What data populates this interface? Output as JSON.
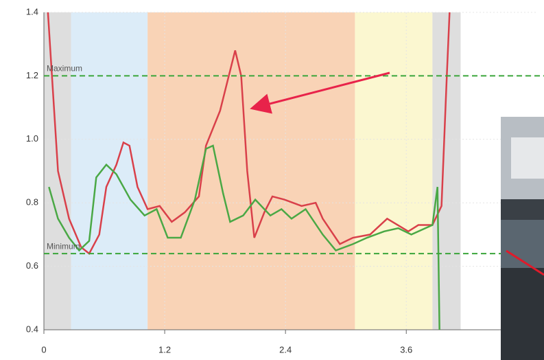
{
  "chart_data": {
    "type": "line",
    "xlim": [
      0,
      4.9
    ],
    "ylim": [
      0.4,
      1.4
    ],
    "xticks": [
      0,
      1.2,
      2.4,
      3.6
    ],
    "yticks": [
      0.4,
      0.6,
      0.8,
      {
        "value": 1,
        "label": "1.0"
      },
      1.2,
      1.4
    ],
    "grid": true,
    "bands": [
      {
        "start": 0,
        "end": 0.27,
        "color": "#dedede"
      },
      {
        "start": 0.27,
        "end": 1.03,
        "color": "#dcecf8"
      },
      {
        "start": 1.03,
        "end": 3.09,
        "color": "#f9d3b6"
      },
      {
        "start": 3.09,
        "end": 3.86,
        "color": "#fbf7d0"
      },
      {
        "start": 3.86,
        "end": 4.14,
        "color": "#dedede"
      }
    ],
    "thresholds": [
      {
        "label": "Maximum",
        "value": 1.2,
        "color": "#3aa53a"
      },
      {
        "label": "Minimum",
        "value": 0.64,
        "color": "#3aa53a"
      }
    ],
    "series": [
      {
        "color": "#d9404a",
        "x": [
          0.04,
          0.14,
          0.25,
          0.37,
          0.45,
          0.55,
          0.62,
          0.72,
          0.79,
          0.85,
          0.93,
          1.03,
          1.15,
          1.27,
          1.4,
          1.54,
          1.61,
          1.75,
          1.9,
          1.96,
          2.02,
          2.09,
          2.19,
          2.27,
          2.39,
          2.56,
          2.7,
          2.77,
          2.94,
          3.07,
          3.24,
          3.41,
          3.62,
          3.72,
          3.86,
          3.95,
          4.0,
          4.03
        ],
        "values": [
          1.4,
          0.9,
          0.75,
          0.66,
          0.64,
          0.7,
          0.85,
          0.92,
          0.99,
          0.98,
          0.85,
          0.78,
          0.79,
          0.74,
          0.77,
          0.82,
          0.98,
          1.09,
          1.28,
          1.2,
          0.9,
          0.69,
          0.77,
          0.82,
          0.81,
          0.79,
          0.8,
          0.75,
          0.67,
          0.69,
          0.7,
          0.75,
          0.71,
          0.73,
          0.73,
          0.79,
          1.18,
          1.4
        ]
      },
      {
        "color": "#4aa845",
        "x": [
          0.05,
          0.14,
          0.25,
          0.35,
          0.45,
          0.52,
          0.62,
          0.72,
          0.86,
          1.0,
          1.12,
          1.23,
          1.36,
          1.5,
          1.61,
          1.68,
          1.78,
          1.85,
          1.98,
          2.1,
          2.25,
          2.36,
          2.46,
          2.6,
          2.77,
          2.9,
          3.07,
          3.21,
          3.38,
          3.52,
          3.65,
          3.86,
          3.91,
          3.93
        ],
        "values": [
          0.85,
          0.75,
          0.69,
          0.65,
          0.68,
          0.88,
          0.92,
          0.89,
          0.81,
          0.76,
          0.78,
          0.69,
          0.69,
          0.81,
          0.97,
          0.98,
          0.83,
          0.74,
          0.76,
          0.81,
          0.76,
          0.78,
          0.75,
          0.78,
          0.7,
          0.65,
          0.67,
          0.69,
          0.71,
          0.72,
          0.7,
          0.73,
          0.85,
          0.4
        ]
      }
    ]
  }
}
